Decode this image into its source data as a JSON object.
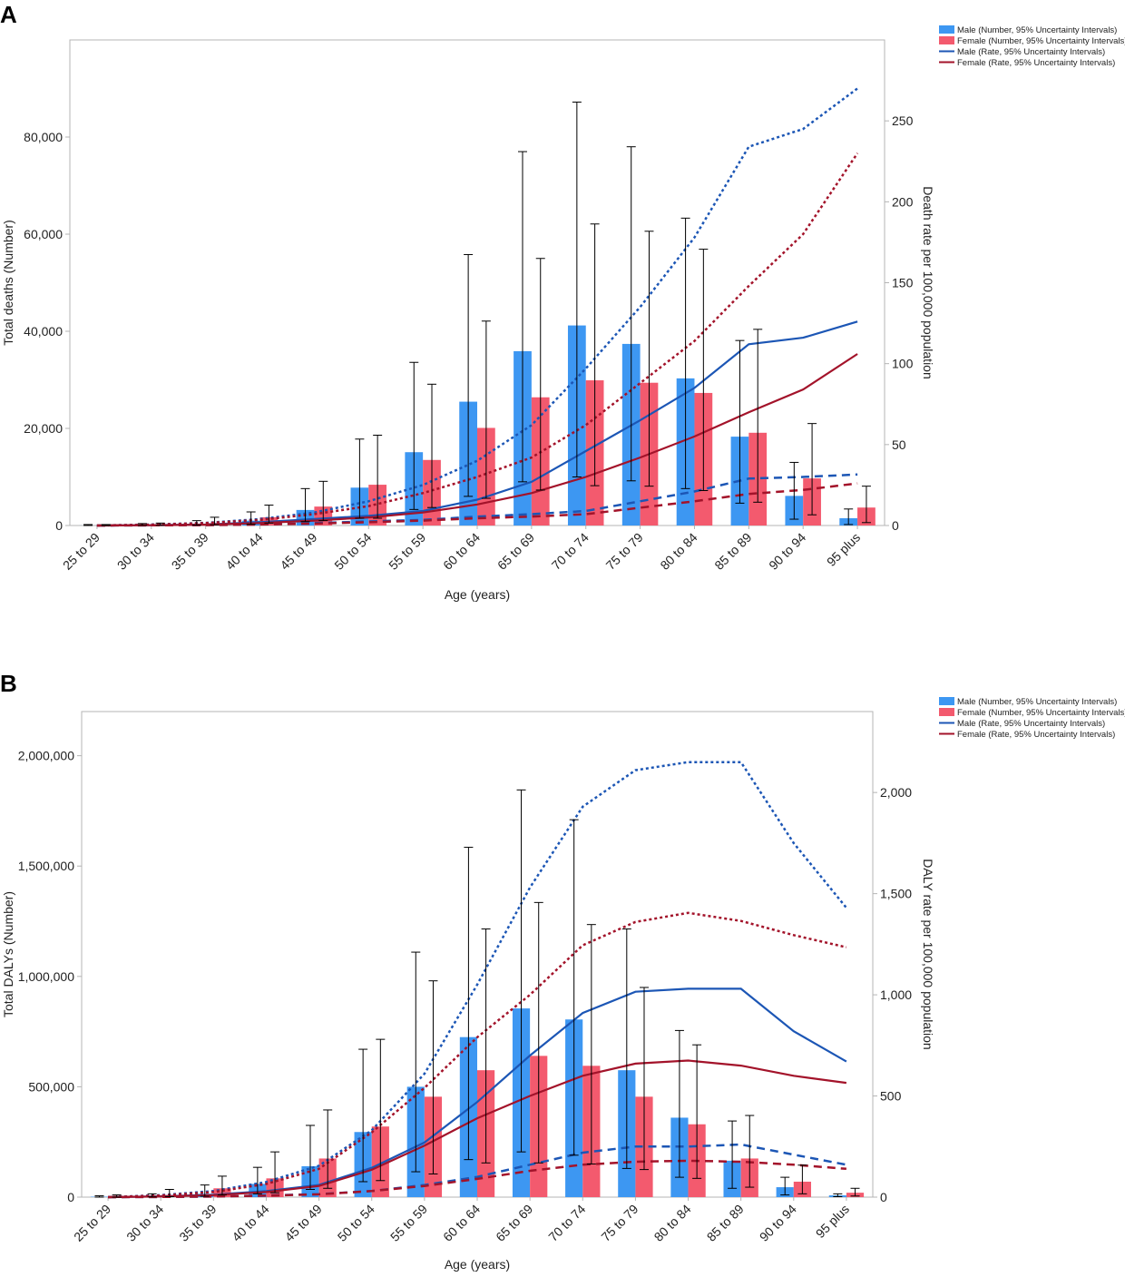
{
  "categories": [
    "25 to 29",
    "30 to 34",
    "35 to 39",
    "40 to 44",
    "45 to 49",
    "50 to 54",
    "55 to 59",
    "60 to 64",
    "65 to 69",
    "70 to 74",
    "75 to 79",
    "80 to 84",
    "85 to 89",
    "90 to 94",
    "95 plus"
  ],
  "colors": {
    "male_bar": "#3d97f2",
    "female_bar": "#f35a6e",
    "male_line": "#1c56b5",
    "female_line": "#a3132a",
    "error": "#000000",
    "frame": "#b4b4b4"
  },
  "legend": [
    "Male (Number, 95% Uncertainty Intervals)",
    "Female (Number, 95% Uncertainty Intervals)",
    "Male (Rate, 95% Uncertainty Intervals)",
    "Female (Rate, 95% Uncertainty Intervals)"
  ],
  "chart_data": [
    {
      "type": "bar",
      "panel_label": "A",
      "xlabel": "Age (years)",
      "ylabel": "Total deaths (Number)",
      "y2label": "Death rate per 100,000 population",
      "ylim": [
        0,
        100000
      ],
      "y2lim": [
        0,
        300
      ],
      "yticks": [
        0,
        20000,
        40000,
        60000,
        80000
      ],
      "yticklabels": [
        "0",
        "20,000",
        "40,000",
        "60,000",
        "80,000"
      ],
      "y2ticks": [
        0,
        50,
        100,
        150,
        200,
        250
      ],
      "y2ticklabels": [
        "0",
        "50",
        "100",
        "150",
        "200",
        "250"
      ],
      "series": [
        {
          "name": "Male (Number, 95% Uncertainty Intervals)",
          "kind": "bar",
          "values": [
            10,
            120,
            300,
            1000,
            3200,
            7800,
            15100,
            25500,
            35900,
            41200,
            37400,
            30300,
            18300,
            6100,
            1500
          ],
          "lower": [
            0,
            30,
            80,
            250,
            800,
            1500,
            3300,
            6000,
            9000,
            10000,
            9200,
            7600,
            4600,
            1300,
            200
          ],
          "upper": [
            200,
            400,
            1000,
            2800,
            7600,
            17800,
            33600,
            55800,
            77000,
            87200,
            78000,
            63300,
            38100,
            13000,
            3400
          ]
        },
        {
          "name": "Female (Number, 95% Uncertainty Intervals)",
          "kind": "bar",
          "values": [
            20,
            150,
            500,
            1700,
            3900,
            8400,
            13500,
            20100,
            26400,
            29900,
            29400,
            27300,
            19100,
            9700,
            3700
          ],
          "lower": [
            0,
            40,
            150,
            500,
            1000,
            1500,
            3700,
            5600,
            7300,
            8200,
            8100,
            7200,
            4800,
            2200,
            600
          ],
          "upper": [
            200,
            500,
            1700,
            4200,
            9100,
            18600,
            29100,
            42100,
            55000,
            62100,
            60600,
            56900,
            40400,
            21000,
            8100
          ]
        },
        {
          "name": "Male (Rate, 95% Uncertainty Intervals)",
          "kind": "line",
          "values": [
            0,
            0.2,
            0.6,
            2,
            4,
            6,
            9,
            16,
            27,
            46,
            65,
            85,
            112,
            116,
            126
          ],
          "lower": [
            0,
            0.1,
            0.3,
            0.7,
            1.5,
            2.5,
            3.5,
            5.5,
            7,
            9,
            15,
            21,
            29,
            30,
            31.5
          ],
          "upper": [
            0,
            0.6,
            1.6,
            4,
            8,
            15,
            25,
            40,
            62,
            97,
            135,
            178,
            234,
            245,
            270
          ]
        },
        {
          "name": "Female (Rate, 95% Uncertainty Intervals)",
          "kind": "line",
          "values": [
            0,
            0.15,
            0.5,
            1.5,
            3,
            5,
            8,
            13,
            20,
            30,
            42,
            55,
            70,
            84,
            106
          ],
          "lower": [
            0,
            0.1,
            0.2,
            0.6,
            1.2,
            2,
            3,
            4.5,
            5.5,
            7,
            11,
            15,
            19.5,
            22,
            26
          ],
          "upper": [
            0,
            0.5,
            1.5,
            3.5,
            7,
            12,
            20,
            30,
            42,
            62,
            88,
            114,
            148,
            180,
            230
          ]
        }
      ]
    },
    {
      "type": "bar",
      "panel_label": "B",
      "xlabel": "Age (years)",
      "ylabel": "Total DALYs (Number)",
      "y2label": "DALY rate per 100,000 population",
      "ylim": [
        0,
        2200000
      ],
      "y2lim": [
        0,
        2400
      ],
      "yticks": [
        0,
        500000,
        1000000,
        1500000,
        2000000
      ],
      "yticklabels": [
        "0",
        "500,000",
        "1,000,000",
        "1,500,000",
        "2,000,000"
      ],
      "y2ticks": [
        0,
        500,
        1000,
        1500,
        2000
      ],
      "y2ticklabels": [
        "0",
        "500",
        "1,000",
        "1,500",
        "2,000"
      ],
      "series": [
        {
          "name": "Male (Number, 95% Uncertainty Intervals)",
          "kind": "bar",
          "values": [
            2000,
            5000,
            15000,
            60000,
            140000,
            295000,
            500000,
            725000,
            855000,
            805000,
            575000,
            360000,
            165000,
            45000,
            8000
          ],
          "lower": [
            0,
            1000,
            4000,
            15000,
            35000,
            70000,
            115000,
            170000,
            205000,
            190000,
            130000,
            90000,
            40000,
            10000,
            2000
          ],
          "upper": [
            6000,
            15000,
            55000,
            135000,
            325000,
            670000,
            1110000,
            1585000,
            1845000,
            1710000,
            1215000,
            755000,
            345000,
            90000,
            15000
          ]
        },
        {
          "name": "Female (Number, 95% Uncertainty Intervals)",
          "kind": "bar",
          "values": [
            3000,
            10000,
            40000,
            85000,
            175000,
            320000,
            455000,
            575000,
            640000,
            595000,
            455000,
            330000,
            175000,
            70000,
            20000
          ],
          "lower": [
            0,
            2000,
            10000,
            20000,
            40000,
            75000,
            105000,
            155000,
            155000,
            150000,
            125000,
            85000,
            45000,
            15000,
            5000
          ],
          "upper": [
            10000,
            35000,
            95000,
            205000,
            395000,
            715000,
            980000,
            1215000,
            1335000,
            1235000,
            950000,
            690000,
            370000,
            145000,
            40000
          ]
        },
        {
          "name": "Male (Rate, 95% Uncertainty Intervals)",
          "kind": "line",
          "values": [
            0,
            4,
            12,
            30,
            60,
            145,
            270,
            470,
            700,
            910,
            1015,
            1030,
            1030,
            820,
            670
          ],
          "lower": [
            0,
            1,
            3,
            8,
            15,
            30,
            60,
            100,
            160,
            220,
            250,
            250,
            260,
            210,
            160
          ],
          "upper": [
            0,
            10,
            30,
            75,
            155,
            330,
            610,
            1050,
            1530,
            1930,
            2110,
            2150,
            2150,
            1750,
            1430
          ]
        },
        {
          "name": "Female (Rate, 95% Uncertainty Intervals)",
          "kind": "line",
          "values": [
            0,
            3,
            10,
            25,
            55,
            135,
            255,
            390,
            500,
            600,
            660,
            675,
            650,
            600,
            565
          ],
          "lower": [
            0,
            1,
            3,
            7,
            14,
            30,
            55,
            90,
            130,
            160,
            175,
            180,
            175,
            160,
            140
          ],
          "upper": [
            0,
            8,
            25,
            65,
            140,
            320,
            540,
            790,
            1000,
            1245,
            1360,
            1405,
            1365,
            1295,
            1235
          ]
        }
      ]
    }
  ]
}
